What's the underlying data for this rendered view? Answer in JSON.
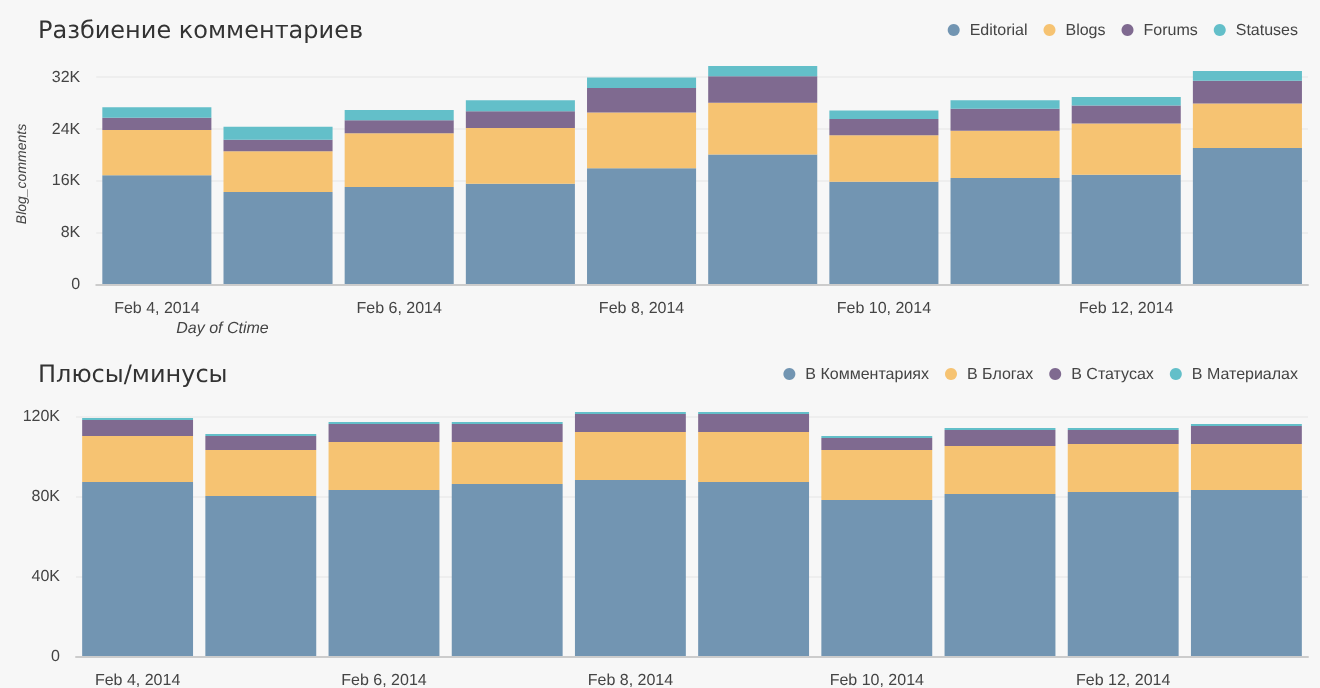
{
  "chart_data": [
    {
      "type": "bar",
      "stacked": true,
      "title": "Разбиение комментариев",
      "xlabel": "Day of Ctime",
      "ylabel": "Blog_comments",
      "categories": [
        "Feb 4, 2014",
        null,
        "Feb 6, 2014",
        null,
        "Feb 8, 2014",
        null,
        "Feb 10, 2014",
        null,
        "Feb 12, 2014",
        null
      ],
      "series": [
        {
          "name": "Editorial",
          "color": "#6a8fae",
          "values": [
            16800,
            14200,
            15000,
            15500,
            17900,
            20000,
            15800,
            16400,
            16900,
            21000
          ]
        },
        {
          "name": "Blogs",
          "color": "#f6c06a",
          "values": [
            7000,
            6300,
            8300,
            8600,
            8600,
            8000,
            7200,
            7300,
            7900,
            6900
          ]
        },
        {
          "name": "Forums",
          "color": "#78628a",
          "values": [
            1900,
            1800,
            2000,
            2600,
            3800,
            4100,
            2500,
            3400,
            2800,
            3500
          ]
        },
        {
          "name": "Statuses",
          "color": "#5bbcc6",
          "values": [
            1600,
            2000,
            1600,
            1700,
            1600,
            1600,
            1300,
            1300,
            1300,
            1500
          ]
        }
      ],
      "ylim": [
        0,
        34000
      ],
      "yticks": [
        0,
        {
          "value": 8000,
          "label": "8K"
        },
        {
          "value": 16000,
          "label": "16K"
        },
        {
          "value": 24000,
          "label": "24K"
        },
        {
          "value": 32000,
          "label": "32K"
        }
      ],
      "grid": "y",
      "legend": "top right"
    },
    {
      "type": "bar",
      "stacked": true,
      "title": "Плюсы/минусы",
      "categories": [
        "Feb 4, 2014",
        null,
        "Feb 6, 2014",
        null,
        "Feb 8, 2014",
        null,
        "Feb 10, 2014",
        null,
        "Feb 12, 2014",
        null
      ],
      "series": [
        {
          "name": "В Комментариях",
          "color": "#6a8fae",
          "values": [
            87000,
            80000,
            83000,
            86000,
            88000,
            87000,
            78000,
            81000,
            82000,
            83000
          ]
        },
        {
          "name": "В Блогах",
          "color": "#f6c06a",
          "values": [
            23000,
            23000,
            24000,
            21000,
            24000,
            25000,
            25000,
            24000,
            24000,
            23000
          ]
        },
        {
          "name": "В Статусах",
          "color": "#78628a",
          "values": [
            8000,
            7000,
            9000,
            9000,
            9000,
            9000,
            6000,
            8000,
            7000,
            9000
          ]
        },
        {
          "name": "В Материалах",
          "color": "#5bbcc6",
          "values": [
            1000,
            1000,
            1000,
            1000,
            1000,
            1000,
            1000,
            1000,
            1000,
            1000
          ]
        }
      ],
      "ylim": [
        0,
        124000
      ],
      "yticks": [
        0,
        {
          "value": 40000,
          "label": "40K"
        },
        {
          "value": 80000,
          "label": "80K"
        },
        {
          "value": 120000,
          "label": "120K"
        }
      ],
      "grid": "y",
      "legend": "top right"
    }
  ]
}
